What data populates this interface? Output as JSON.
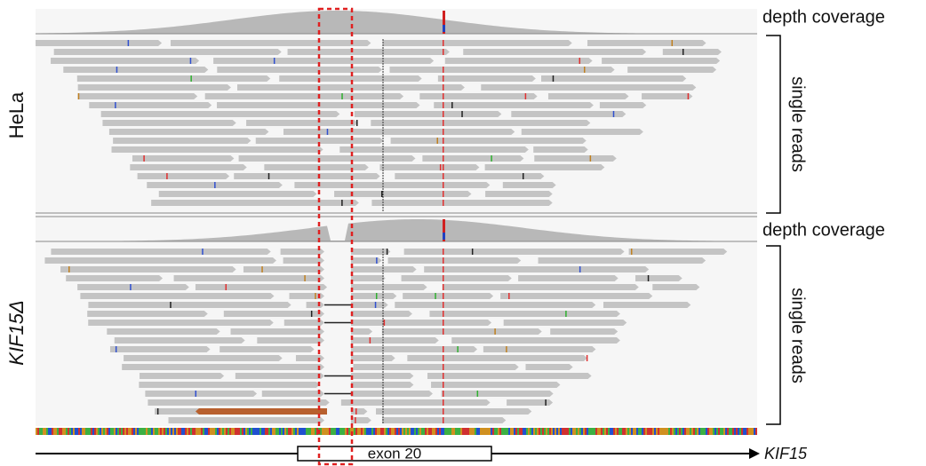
{
  "tracks": [
    {
      "sample": "HeLa",
      "coverage_label": "depth coverage",
      "reads_label": "single reads"
    },
    {
      "sample": "KIF15Δ",
      "coverage_label": "depth coverage",
      "reads_label": "single reads"
    }
  ],
  "gene": {
    "exon": "exon 20",
    "name": "KIF15"
  }
}
